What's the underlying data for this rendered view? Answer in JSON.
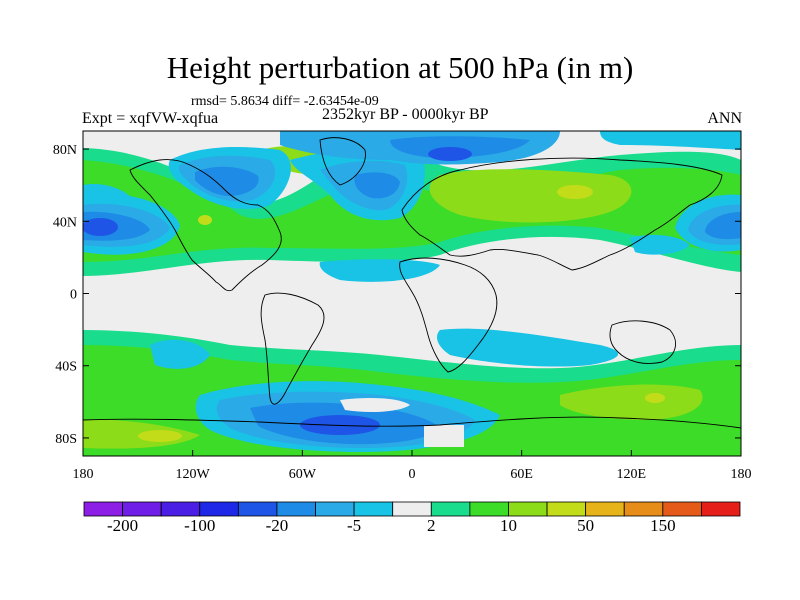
{
  "title": "Height perturbation at 500 hPa (in m)",
  "stats": "rmsd= 5.8634 diff= -2.63454e-09",
  "period": "2352kyr BP - 0000kyr BP",
  "experiment": "Expt = xqfVW-xqfua",
  "season": "ANN",
  "axes": {
    "lon_ticks": [
      {
        "lon": -180,
        "label": "180"
      },
      {
        "lon": -120,
        "label": "120W"
      },
      {
        "lon": -60,
        "label": "60W"
      },
      {
        "lon": 0,
        "label": "0"
      },
      {
        "lon": 60,
        "label": "60E"
      },
      {
        "lon": 120,
        "label": "120E"
      },
      {
        "lon": 180,
        "label": "180"
      }
    ],
    "lat_ticks": [
      {
        "lat": 80,
        "label": "80N"
      },
      {
        "lat": 40,
        "label": "40N"
      },
      {
        "lat": 0,
        "label": "0"
      },
      {
        "lat": -40,
        "label": "40S"
      },
      {
        "lat": -80,
        "label": "80S"
      }
    ]
  },
  "colorbar": {
    "colors": [
      "#8c1ee6",
      "#6e1ee6",
      "#4b1ee6",
      "#1e28e6",
      "#1e55e6",
      "#1e8ce6",
      "#2aaae6",
      "#19c3e6",
      "#eeeeee",
      "#19dc8c",
      "#3cdc28",
      "#8cdc19",
      "#c3dc19",
      "#e6b419",
      "#e68c19",
      "#e65a19",
      "#e61e19"
    ],
    "labels": [
      {
        "text": "-200",
        "boundary": 1
      },
      {
        "text": "-100",
        "boundary": 3
      },
      {
        "text": "-20",
        "boundary": 5
      },
      {
        "text": "-5",
        "boundary": 7
      },
      {
        "text": "2",
        "boundary": 9
      },
      {
        "text": "10",
        "boundary": 11
      },
      {
        "text": "50",
        "boundary": 13
      },
      {
        "text": "150",
        "boundary": 15
      }
    ]
  },
  "map": {
    "background_color": "#eeeeee",
    "lon_range": [
      -180,
      180
    ],
    "lat_range": [
      -90,
      90
    ]
  }
}
